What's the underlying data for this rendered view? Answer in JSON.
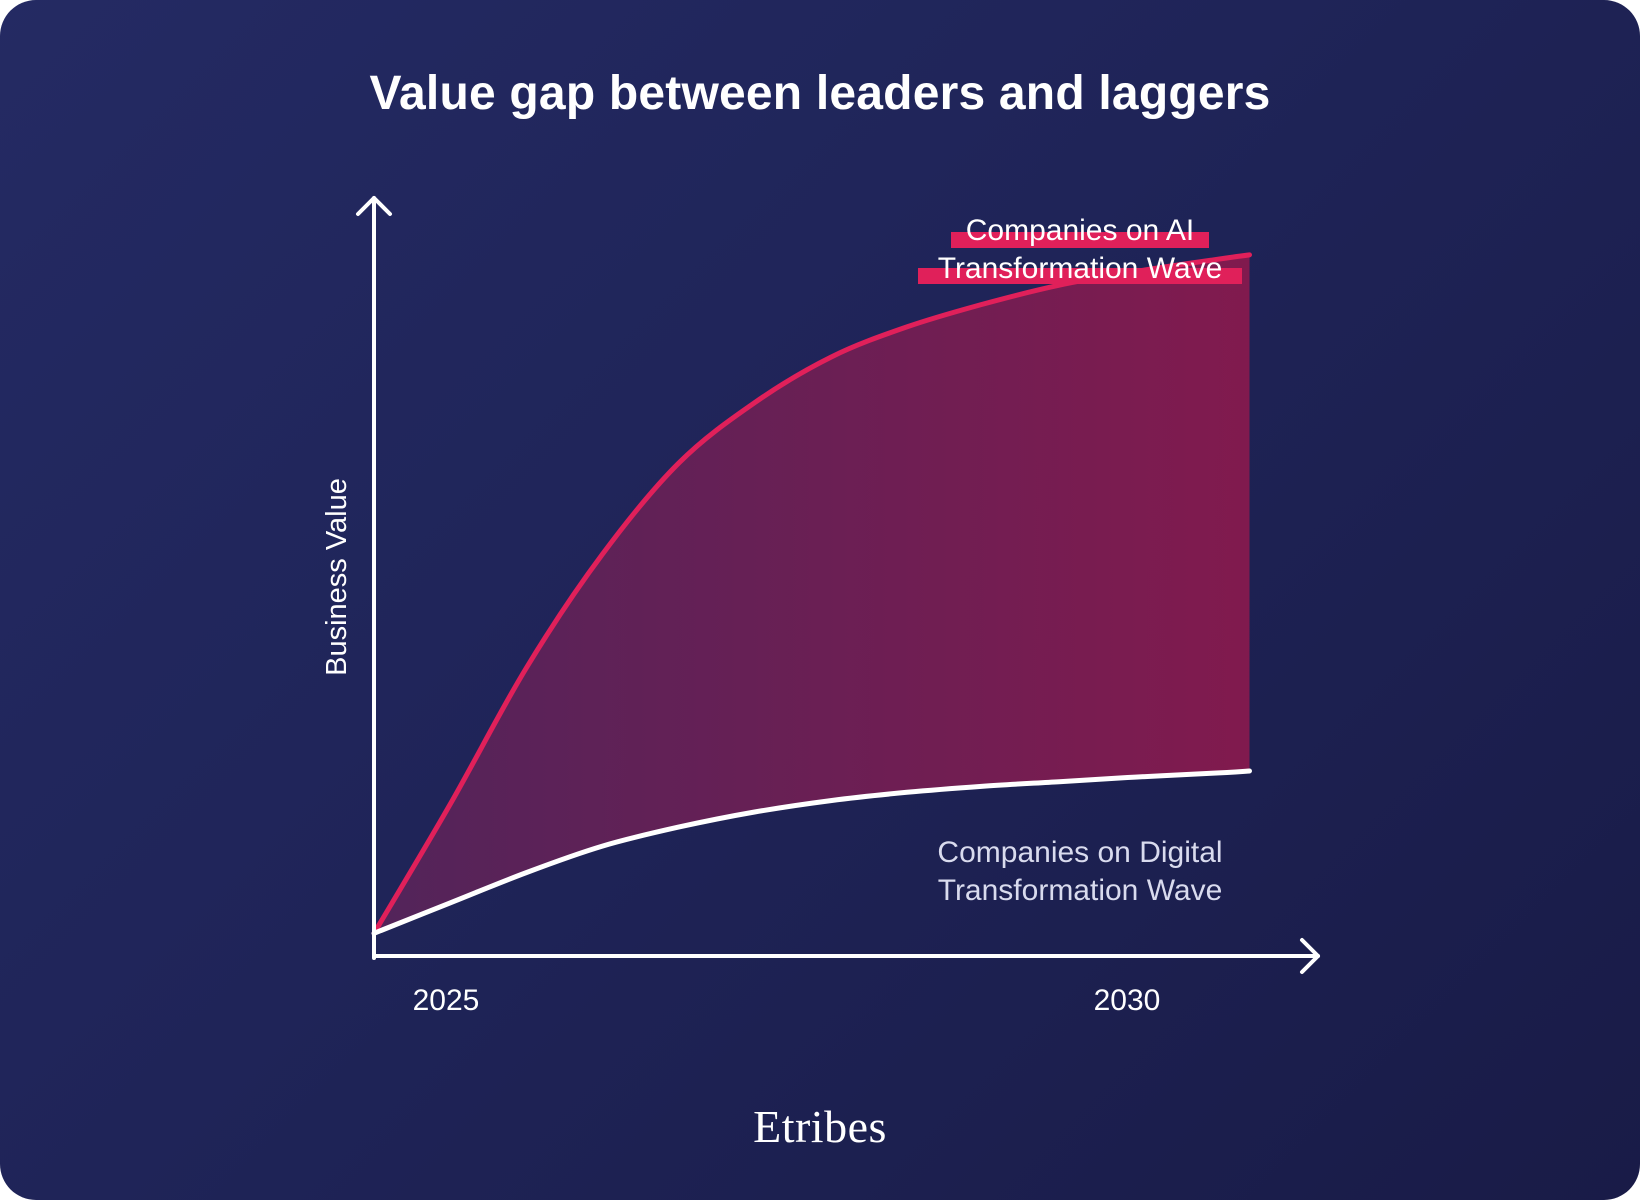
{
  "title": "Value gap between leaders and laggers",
  "brand": "Etribes",
  "colors": {
    "background_start": "#242a63",
    "background_end": "#191b47",
    "ai_line": "#e0205a",
    "digital_line": "#ffffff",
    "gap_fill_start": "#55245a",
    "gap_fill_end": "#861a4e",
    "axis": "#ffffff"
  },
  "chart_data": {
    "type": "area",
    "ylabel": "Business Value",
    "x_ticks": [
      "2025",
      "2030"
    ],
    "y_ticks_shown": false,
    "xlim": [
      2025,
      2031.2
    ],
    "ylim": [
      0,
      100
    ],
    "series": [
      {
        "name_lines": [
          "Companies on AI",
          "Transformation Wave"
        ],
        "x": [
          2025,
          2025.5,
          2026,
          2026.5,
          2027,
          2027.5,
          2028,
          2028.5,
          2029,
          2029.5,
          2030,
          2030.5,
          2030.75
        ],
        "values": [
          3,
          20,
          38,
          53,
          65,
          73,
          79,
          83,
          86,
          88.5,
          90.3,
          91.8,
          92.5
        ],
        "style": "highlighted"
      },
      {
        "name_lines": [
          "Companies on Digital",
          "Transformation Wave"
        ],
        "x": [
          2025,
          2025.5,
          2026,
          2026.5,
          2027,
          2027.5,
          2028,
          2028.5,
          2029,
          2029.5,
          2030,
          2030.5,
          2030.75
        ],
        "values": [
          3,
          7,
          11,
          14.5,
          17,
          19,
          20.5,
          21.6,
          22.4,
          23,
          23.6,
          24.1,
          24.4
        ],
        "style": "plain"
      }
    ],
    "shaded_gap_between_series": true
  }
}
